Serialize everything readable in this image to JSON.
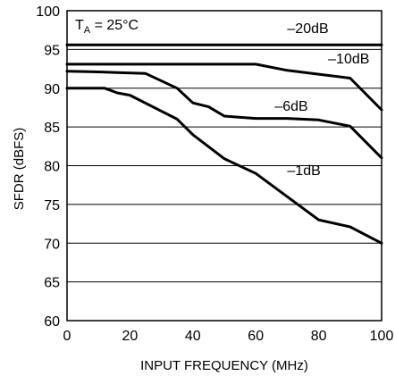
{
  "chart_data": {
    "type": "line",
    "title": "",
    "annotation": {
      "prefix": "T",
      "subscript": "A",
      "suffix": " = 25°C"
    },
    "xlabel": "INPUT FREQUENCY (MHz)",
    "ylabel": "SFDR (dBFS)",
    "xlim": [
      0,
      100
    ],
    "ylim": [
      60,
      100
    ],
    "xticks": [
      0,
      20,
      40,
      60,
      80,
      100
    ],
    "yticks": [
      60,
      65,
      70,
      75,
      80,
      85,
      90,
      95,
      100
    ],
    "grid": "horizontal",
    "legend": "none",
    "series": [
      {
        "name": "–20dB",
        "label_at": [
          70,
          97.1
        ],
        "points": [
          [
            0,
            95.6
          ],
          [
            100,
            95.6
          ]
        ]
      },
      {
        "name": "–10dB",
        "label_at": [
          83,
          93.2
        ],
        "points": [
          [
            0,
            93.1
          ],
          [
            10,
            93.1
          ],
          [
            30,
            93.1
          ],
          [
            60,
            93.1
          ],
          [
            70,
            92.3
          ],
          [
            80,
            91.8
          ],
          [
            90,
            91.3
          ],
          [
            100,
            87.2
          ]
        ]
      },
      {
        "name": "–6dB",
        "label_at": [
          66,
          87.1
        ],
        "points": [
          [
            0,
            92.2
          ],
          [
            10,
            92.1
          ],
          [
            25,
            91.9
          ],
          [
            35,
            90.0
          ],
          [
            40,
            88.1
          ],
          [
            45,
            87.6
          ],
          [
            50,
            86.4
          ],
          [
            60,
            86.1
          ],
          [
            70,
            86.1
          ],
          [
            80,
            85.9
          ],
          [
            90,
            85.1
          ],
          [
            100,
            81.0
          ]
        ]
      },
      {
        "name": "–1dB",
        "label_at": [
          70,
          78.8
        ],
        "points": [
          [
            0,
            90.0
          ],
          [
            12,
            90.0
          ],
          [
            16,
            89.4
          ],
          [
            20,
            89.1
          ],
          [
            35,
            86.0
          ],
          [
            40,
            84.0
          ],
          [
            50,
            80.9
          ],
          [
            60,
            79.0
          ],
          [
            70,
            76.0
          ],
          [
            80,
            73.0
          ],
          [
            90,
            72.1
          ],
          [
            100,
            70.0
          ]
        ]
      }
    ]
  }
}
